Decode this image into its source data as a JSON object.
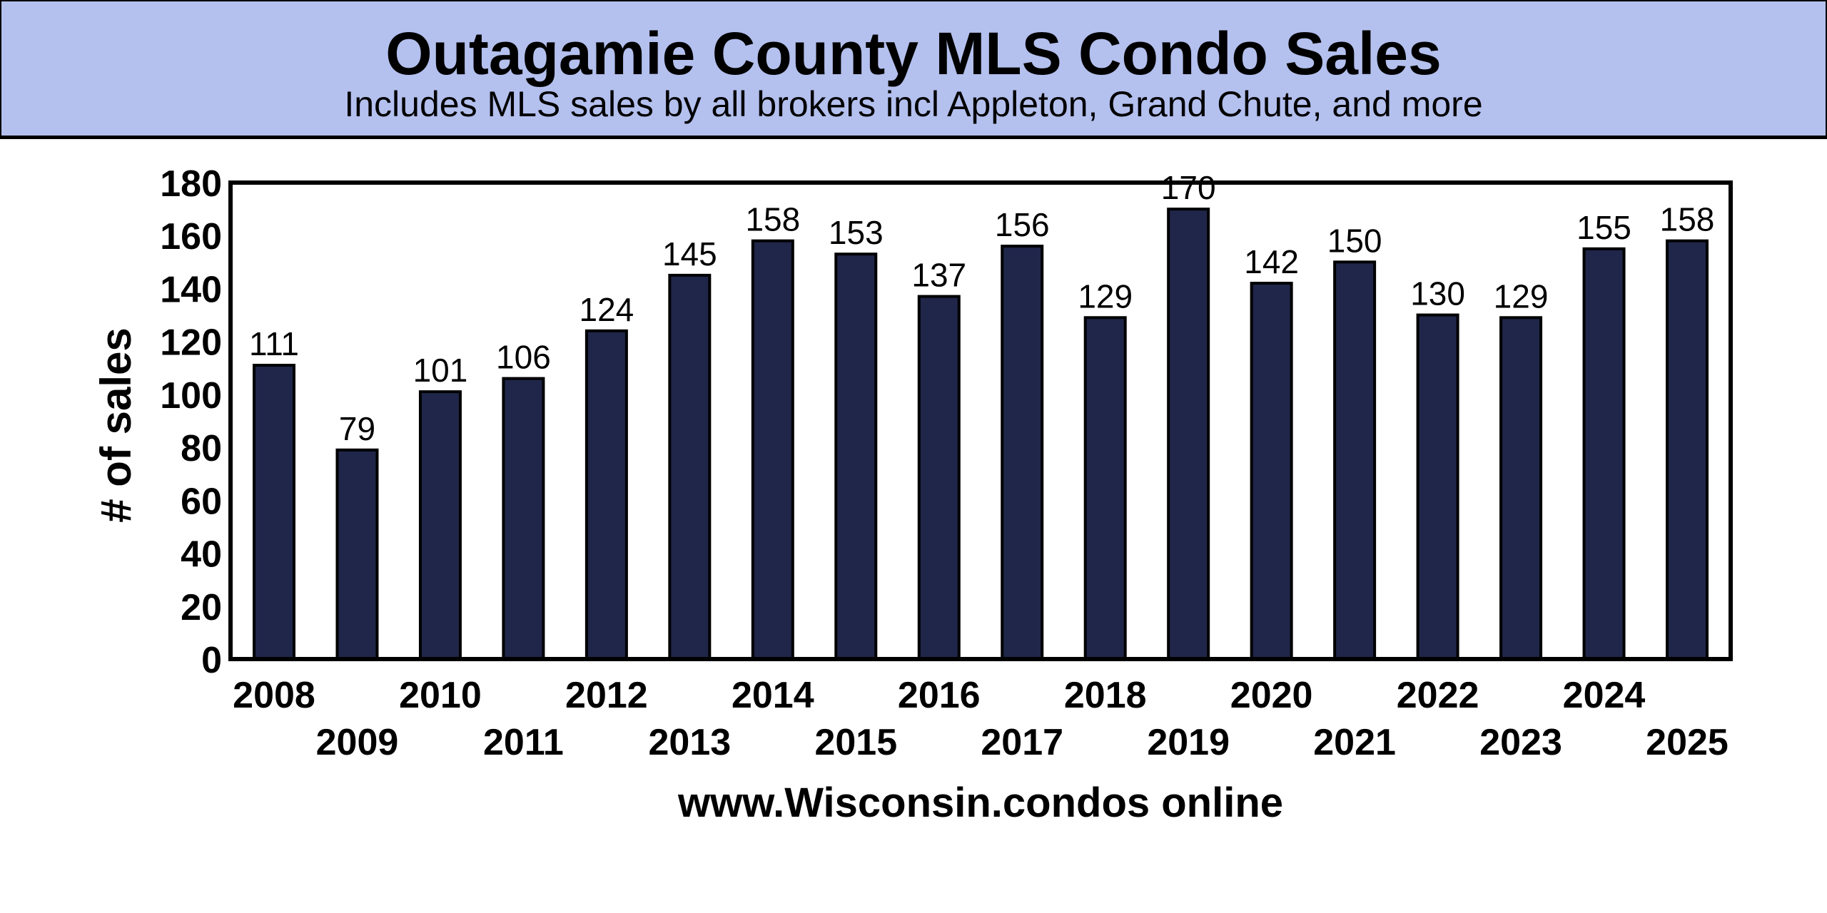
{
  "chart_data": {
    "type": "bar",
    "title": "Outagamie County MLS Condo Sales",
    "subtitle": "Includes MLS sales by all brokers incl Appleton, Grand Chute, and more",
    "xlabel": "www.Wisconsin.condos online",
    "ylabel": "# of sales",
    "ylim": [
      0,
      180
    ],
    "yticks": [
      0,
      20,
      40,
      60,
      80,
      100,
      120,
      140,
      160,
      180
    ],
    "grid": false,
    "categories": [
      "2008",
      "2009",
      "2010",
      "2011",
      "2012",
      "2013",
      "2014",
      "2015",
      "2016",
      "2017",
      "2018",
      "2019",
      "2020",
      "2021",
      "2022",
      "2023",
      "2024",
      "2025"
    ],
    "values": [
      111,
      79,
      101,
      106,
      124,
      145,
      158,
      153,
      137,
      156,
      129,
      170,
      142,
      150,
      130,
      129,
      155,
      158
    ],
    "colors": {
      "bar": "#1f2649",
      "banner": "#b4c0ee"
    }
  }
}
